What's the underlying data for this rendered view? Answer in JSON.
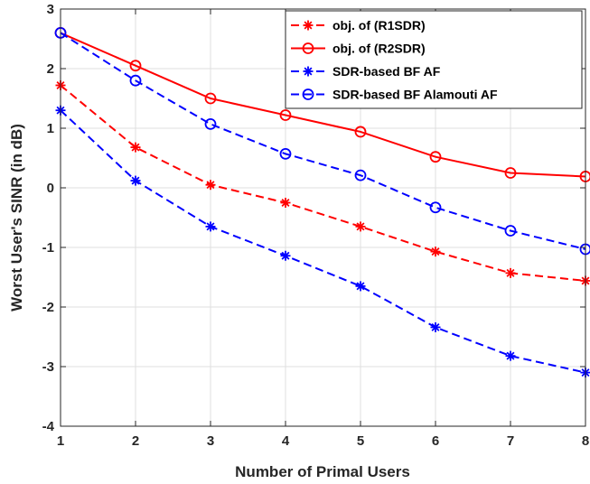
{
  "chart_data": {
    "type": "line",
    "xlabel": "Number of Primal Users",
    "ylabel": "Worst User's SINR (in dB)",
    "xlim": [
      1,
      8
    ],
    "ylim": [
      -4,
      3
    ],
    "xticks": [
      "1",
      "2",
      "3",
      "4",
      "5",
      "6",
      "7",
      "8"
    ],
    "yticks": [
      "-4",
      "-3",
      "-2",
      "-1",
      "0",
      "1",
      "2",
      "3"
    ],
    "grid": true,
    "legend_position": "top-right",
    "x": [
      1,
      2,
      3,
      4,
      5,
      6,
      7,
      8
    ],
    "series": [
      {
        "name": "obj. of (R1SDR)",
        "color": "#ff0000",
        "dash": "dashed",
        "marker": "asterisk",
        "values": [
          1.72,
          0.68,
          0.05,
          -0.25,
          -0.65,
          -1.07,
          -1.43,
          -1.56
        ]
      },
      {
        "name": "obj. of (R2SDR)",
        "color": "#ff0000",
        "dash": "solid",
        "marker": "circle",
        "values": [
          2.6,
          2.05,
          1.5,
          1.22,
          0.94,
          0.52,
          0.25,
          0.19
        ]
      },
      {
        "name": "SDR-based BF AF",
        "color": "#0000ff",
        "dash": "dashed",
        "marker": "asterisk",
        "values": [
          1.3,
          0.12,
          -0.65,
          -1.14,
          -1.65,
          -2.34,
          -2.82,
          -3.1
        ]
      },
      {
        "name": "SDR-based BF Alamouti AF",
        "color": "#0000ff",
        "dash": "dashed",
        "marker": "circle",
        "values": [
          2.6,
          1.8,
          1.07,
          0.57,
          0.21,
          -0.33,
          -0.72,
          -1.03
        ]
      }
    ]
  }
}
